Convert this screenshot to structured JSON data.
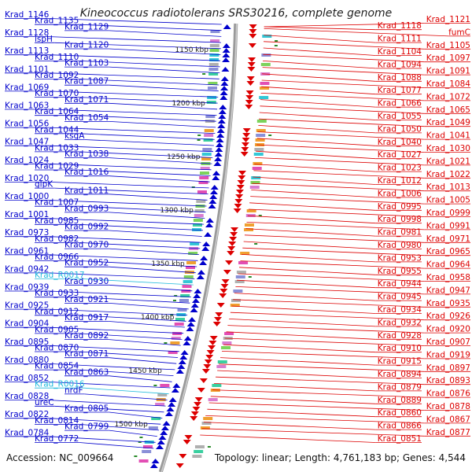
{
  "header": {
    "title": "Kineococcus radiotolerans SRS30216, complete genome"
  },
  "footer": {
    "accession": "Accession: NC_009664",
    "summary": "Topology: linear; Length: 4,761,183 bp; Genes: 4,544"
  },
  "colors": {
    "forward_strand": "#0000cc",
    "reverse_strand": "#dd0000",
    "rna_gene": "#22bbdd",
    "backbone": "#888888"
  },
  "scale_ticks": [
    "1150 kbp",
    "1200 kbp",
    "1250 kbp",
    "1300 kbp",
    "1350 kbp",
    "1400 kbp",
    "1450 kbp",
    "1500 kbp"
  ],
  "left_labels": [
    {
      "text": "Krad_1146",
      "kind": "gene"
    },
    {
      "text": "Krad_1135",
      "kind": "gene"
    },
    {
      "text": "Krad_1129",
      "kind": "gene"
    },
    {
      "text": "Krad_1128",
      "kind": "gene"
    },
    {
      "text": "ispH",
      "kind": "gene"
    },
    {
      "text": "Krad_1120",
      "kind": "gene"
    },
    {
      "text": "Krad_1113",
      "kind": "gene"
    },
    {
      "text": "Krad_1110",
      "kind": "gene"
    },
    {
      "text": "Krad_1103",
      "kind": "gene"
    },
    {
      "text": "Krad_1101",
      "kind": "gene"
    },
    {
      "text": "Krad_1092",
      "kind": "gene"
    },
    {
      "text": "Krad_1087",
      "kind": "gene"
    },
    {
      "text": "Krad_1069",
      "kind": "gene"
    },
    {
      "text": "Krad_1070",
      "kind": "gene"
    },
    {
      "text": "Krad_1071",
      "kind": "gene"
    },
    {
      "text": "Krad_1063",
      "kind": "gene"
    },
    {
      "text": "Krad_1064",
      "kind": "gene"
    },
    {
      "text": "Krad_1054",
      "kind": "gene"
    },
    {
      "text": "Krad_1056",
      "kind": "gene"
    },
    {
      "text": "Krad_1044",
      "kind": "gene"
    },
    {
      "text": "ksgA",
      "kind": "gene"
    },
    {
      "text": "Krad_1047",
      "kind": "gene"
    },
    {
      "text": "Krad_1033",
      "kind": "gene"
    },
    {
      "text": "Krad_1038",
      "kind": "gene"
    },
    {
      "text": "Krad_1024",
      "kind": "gene"
    },
    {
      "text": "Krad_1029",
      "kind": "gene"
    },
    {
      "text": "Krad_1016",
      "kind": "gene"
    },
    {
      "text": "Krad_1020",
      "kind": "gene"
    },
    {
      "text": "glpK",
      "kind": "gene"
    },
    {
      "text": "Krad_1011",
      "kind": "gene"
    },
    {
      "text": "Krad_1000",
      "kind": "gene"
    },
    {
      "text": "Krad_1007",
      "kind": "gene"
    },
    {
      "text": "Krad_0993",
      "kind": "gene"
    },
    {
      "text": "Krad_1001",
      "kind": "gene"
    },
    {
      "text": "Krad_0985",
      "kind": "gene"
    },
    {
      "text": "Krad_0992",
      "kind": "gene"
    },
    {
      "text": "Krad_0973",
      "kind": "gene"
    },
    {
      "text": "Krad_0982",
      "kind": "gene"
    },
    {
      "text": "Krad_0970",
      "kind": "gene"
    },
    {
      "text": "Krad_0961",
      "kind": "gene"
    },
    {
      "text": "Krad_0966",
      "kind": "gene"
    },
    {
      "text": "Krad_0952",
      "kind": "gene"
    },
    {
      "text": "Krad_0942",
      "kind": "gene"
    },
    {
      "text": "Krad_R0017",
      "kind": "rna"
    },
    {
      "text": "Krad_0930",
      "kind": "gene"
    },
    {
      "text": "Krad_0939",
      "kind": "gene"
    },
    {
      "text": "Krad_0933",
      "kind": "gene"
    },
    {
      "text": "Krad_0921",
      "kind": "gene"
    },
    {
      "text": "Krad_0925",
      "kind": "gene"
    },
    {
      "text": "Krad_0912",
      "kind": "gene"
    },
    {
      "text": "Krad_0917",
      "kind": "gene"
    },
    {
      "text": "Krad_0904",
      "kind": "gene"
    },
    {
      "text": "Krad_0905",
      "kind": "gene"
    },
    {
      "text": "Krad_0892",
      "kind": "gene"
    },
    {
      "text": "Krad_0895",
      "kind": "gene"
    },
    {
      "text": "Krad_0870",
      "kind": "gene"
    },
    {
      "text": "Krad_0871",
      "kind": "gene"
    },
    {
      "text": "Krad_0880",
      "kind": "gene"
    },
    {
      "text": "Krad_0854",
      "kind": "gene"
    },
    {
      "text": "Krad_0863",
      "kind": "gene"
    },
    {
      "text": "Krad_0852",
      "kind": "gene"
    },
    {
      "text": "Krad_R0016",
      "kind": "rna"
    },
    {
      "text": "nrdF",
      "kind": "gene"
    },
    {
      "text": "Krad_0828",
      "kind": "gene"
    },
    {
      "text": "ureC",
      "kind": "gene"
    },
    {
      "text": "Krad_0805",
      "kind": "gene"
    },
    {
      "text": "Krad_0822",
      "kind": "gene"
    },
    {
      "text": "Krad_0814",
      "kind": "gene"
    },
    {
      "text": "Krad_0799",
      "kind": "gene"
    },
    {
      "text": "Krad_0784",
      "kind": "gene"
    },
    {
      "text": "Krad_0772",
      "kind": "gene"
    }
  ],
  "right_labels": [
    "Krad_1121",
    "Krad_1118",
    "fumC",
    "Krad_1111",
    "Krad_1105",
    "Krad_1104",
    "Krad_1097",
    "Krad_1094",
    "Krad_1091",
    "Krad_1088",
    "Krad_1084",
    "Krad_1077",
    "Krad_1072",
    "Krad_1066",
    "Krad_1065",
    "Krad_1055",
    "Krad_1049",
    "Krad_1050",
    "Krad_1041",
    "Krad_1040",
    "Krad_1030",
    "Krad_1027",
    "Krad_1021",
    "Krad_1023",
    "Krad_1022",
    "Krad_1012",
    "Krad_1013",
    "Krad_1006",
    "Krad_1005",
    "Krad_0995",
    "Krad_0999",
    "Krad_0998",
    "Krad_0991",
    "Krad_0981",
    "Krad_0971",
    "Krad_0980",
    "Krad_0965",
    "Krad_0953",
    "Krad_0964",
    "Krad_0955",
    "Krad_0958",
    "Krad_0944",
    "Krad_0947",
    "Krad_0945",
    "Krad_0935",
    "Krad_0934",
    "Krad_0926",
    "Krad_0932",
    "Krad_0920",
    "Krad_0928",
    "Krad_0907",
    "Krad_0910",
    "Krad_0919",
    "Krad_0915",
    "Krad_0897",
    "Krad_0894",
    "Krad_0893",
    "Krad_0879",
    "Krad_0876",
    "Krad_0889",
    "Krad_0878",
    "Krad_0860",
    "Krad_0867",
    "Krad_0866",
    "Krad_0877",
    "Krad_0851"
  ]
}
